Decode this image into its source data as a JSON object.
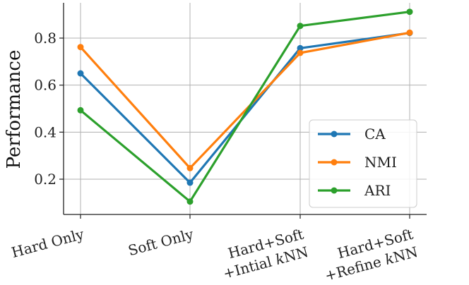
{
  "chart_data": {
    "type": "line",
    "title": "",
    "xlabel": "",
    "ylabel": "Performance",
    "categories": [
      [
        "Hard Only"
      ],
      [
        "Soft Only"
      ],
      [
        "Hard+Soft",
        "+Intial kNN"
      ],
      [
        "Hard+Soft",
        "+Refine kNN"
      ]
    ],
    "ylim": [
      0.05,
      0.95
    ],
    "yticks": [
      "0.2",
      "0.4",
      "0.6",
      "0.8"
    ],
    "grid": true,
    "legend_position": "lower-right",
    "series": [
      {
        "name": "CA",
        "color": "#1f77b4",
        "values": [
          0.65,
          0.185,
          0.757,
          0.822
        ]
      },
      {
        "name": "NMI",
        "color": "#ff7f0e",
        "values": [
          0.762,
          0.247,
          0.737,
          0.823
        ]
      },
      {
        "name": "ARI",
        "color": "#2ca02c",
        "values": [
          0.493,
          0.105,
          0.852,
          0.912
        ]
      }
    ]
  }
}
